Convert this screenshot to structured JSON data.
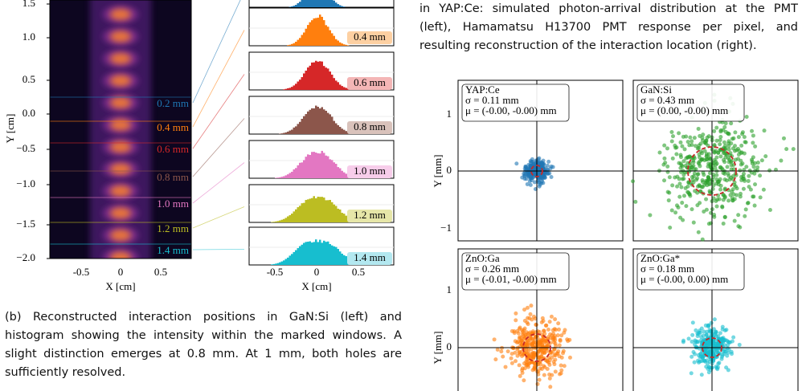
{
  "figure_b": {
    "left": {
      "y_label": "Y [cm]",
      "x_label": "X [cm]",
      "y_ticks": [
        "1.5",
        "1.0",
        "0.5",
        "0.0",
        "−0.5",
        "−1.0",
        "−1.5",
        "−2.0"
      ],
      "x_ticks": [
        "-0.5",
        "0",
        "0.5"
      ],
      "windows": [
        "0.2 mm",
        "0.4 mm",
        "0.6 mm",
        "0.8 mm",
        "1.0 mm",
        "1.2 mm",
        "1.4 mm"
      ]
    },
    "hist": {
      "x_label": "X [cm]",
      "x_ticks": [
        "-0.5",
        "0",
        "0.5"
      ],
      "labels": [
        "0.4 mm",
        "0.6 mm",
        "0.8 mm",
        "1.0 mm",
        "1.2 mm",
        "1.4 mm"
      ]
    },
    "caption": [
      "(b) Reconstructed interaction positions in GaN:Si (left) and",
      "histogram showing the intensity within the marked windows. A",
      "slight distinction emerges at 0.8 mm. At 1 mm, both holes are",
      "sufficiently resolved."
    ]
  },
  "figure_a": {
    "caption": [
      "in YAP:Ce: simulated photon-arrival distribution at the PMT",
      "(left), Hamamatsu H13700 PMT response per pixel, and",
      "resulting reconstruction of the interaction location (right)."
    ],
    "y_label": "Y [mm]",
    "y_ticks_top": [
      "1",
      "0",
      "−1"
    ],
    "y_ticks_bottom": [
      "1",
      "0"
    ],
    "panels": [
      {
        "name": "YAP:Ce",
        "sigma": "σ = 0.11 mm",
        "mu": "μ = (-0.00, -0.00) mm"
      },
      {
        "name": "GaN:Si",
        "sigma": "σ = 0.43 mm",
        "mu": "μ = (0.00, -0.00) mm"
      },
      {
        "name": "ZnO:Ga",
        "sigma": "σ = 0.26 mm",
        "mu": "μ = (-0.01, -0.00) mm"
      },
      {
        "name": "ZnO:Ga*",
        "sigma": "σ = 0.18 mm",
        "mu": "μ = (-0.00, 0.00) mm"
      }
    ]
  }
}
